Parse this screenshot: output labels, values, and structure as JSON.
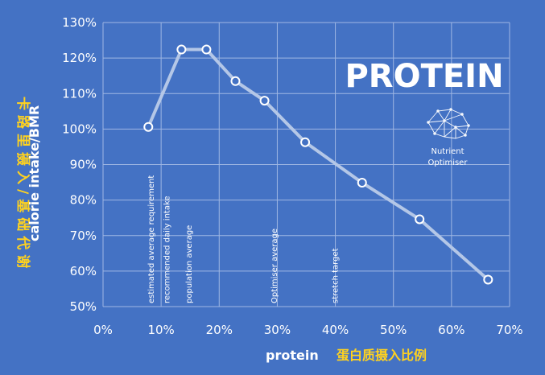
{
  "chart_data": {
    "type": "line",
    "title": "PROTEIN",
    "xlabel": "protein",
    "xlabel_cn": "蛋白质摄入比例",
    "ylabel": "calorie intake/BMR",
    "ylabel_cn": "卡路里摄入/基础代谢",
    "xlim": [
      0,
      70
    ],
    "ylim": [
      50,
      130
    ],
    "x_ticks": [
      "0%",
      "10%",
      "20%",
      "30%",
      "40%",
      "50%",
      "60%",
      "70%"
    ],
    "y_ticks": [
      "50%",
      "60%",
      "70%",
      "80%",
      "90%",
      "100%",
      "110%",
      "120%",
      "130%"
    ],
    "grid": true,
    "series": [
      {
        "x": [
          7.8,
          13.5,
          17.8,
          22.8,
          27.8,
          34.8,
          44.6,
          54.5,
          66.3
        ],
        "y": [
          100.6,
          122.4,
          122.4,
          113.5,
          108.0,
          96.3,
          84.9,
          74.6,
          57.6
        ]
      }
    ],
    "annotations": [
      {
        "x": 8.3,
        "text": "estimated average requirement"
      },
      {
        "x": 11.0,
        "text": "recommended daily intake"
      },
      {
        "x": 14.8,
        "text": "population average"
      },
      {
        "x": 29.5,
        "text": "Optimiser average"
      },
      {
        "x": 40.0,
        "text": "stretch target"
      }
    ],
    "line_color": "#b4c7e7",
    "marker_fill": "#4472c4",
    "background": "#4472c4"
  },
  "logo": {
    "line1": "Nutrient",
    "line2": "Optimiser",
    "icon": "brain-icon"
  }
}
